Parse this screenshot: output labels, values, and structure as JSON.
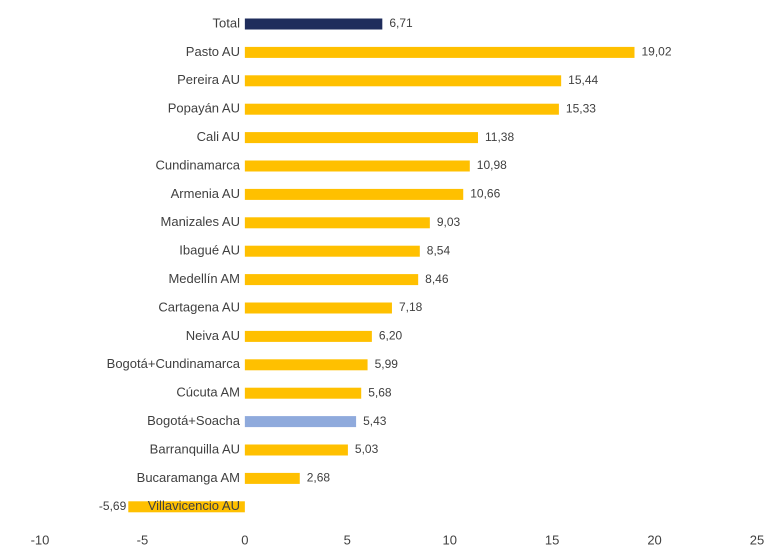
{
  "chart_data": {
    "type": "hbar",
    "categories": [
      "Total",
      "Pasto AU",
      "Pereira AU",
      "Popayán AU",
      "Cali AU",
      "Cundinamarca",
      "Armenia AU",
      "Manizales AU",
      "Ibagué AU",
      "Medellín AM",
      "Cartagena AU",
      "Neiva AU",
      "Bogotá+Cundinamarca",
      "Cúcuta AM",
      "Bogotá+Soacha",
      "Barranquilla AU",
      "Bucaramanga AM",
      "Villavicencio AU"
    ],
    "values": [
      6.71,
      19.02,
      15.44,
      15.33,
      11.38,
      10.98,
      10.66,
      9.03,
      8.54,
      8.46,
      7.18,
      6.2,
      5.99,
      5.68,
      5.43,
      5.03,
      2.68,
      -5.69
    ],
    "value_labels": [
      "6,71",
      "19,02",
      "15,44",
      "15,33",
      "11,38",
      "10,98",
      "10,66",
      "9,03",
      "8,54",
      "8,46",
      "7,18",
      "6,20",
      "5,99",
      "5,68",
      "5,43",
      "5,03",
      "2,68",
      "-5,69"
    ],
    "colors": [
      "#1f2d5c",
      "#ffc000",
      "#ffc000",
      "#ffc000",
      "#ffc000",
      "#ffc000",
      "#ffc000",
      "#ffc000",
      "#ffc000",
      "#ffc000",
      "#ffc000",
      "#ffc000",
      "#ffc000",
      "#ffc000",
      "#8faadc",
      "#ffc000",
      "#ffc000",
      "#ffc000"
    ],
    "xlim": [
      -10,
      25
    ],
    "xticks": [
      -10,
      -5,
      0,
      5,
      10,
      15,
      20,
      25
    ]
  }
}
